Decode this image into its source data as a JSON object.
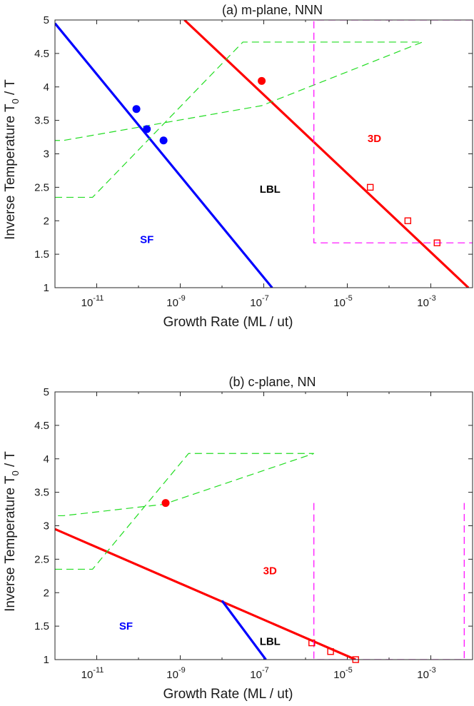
{
  "chart_data": [
    {
      "type": "line",
      "title": "(a) m-plane, NNN",
      "xlabel": "Growth Rate (ML / ut)",
      "ylabel_main": "Inverse Temperature T",
      "ylabel_sub": "0",
      "ylabel_tail": " / T",
      "xscale": "log",
      "xlim_log10": [
        -12,
        -2
      ],
      "ylim": [
        1,
        5
      ],
      "yticks": [
        1,
        1.5,
        2,
        2.5,
        3,
        3.5,
        4,
        4.5,
        5
      ],
      "ytick_labels": [
        "1",
        "1.5",
        "2",
        "2.5",
        "3",
        "3.5",
        "4",
        "4.5",
        "5"
      ],
      "xticks_log10": [
        -11,
        -9,
        -7,
        -5,
        -3
      ],
      "xtick_base": "10",
      "xtick_exps": [
        "-11",
        "-9",
        "-7",
        "-5",
        "-3"
      ],
      "series": [
        {
          "name": "SF-LBL boundary",
          "color": "#0000ff",
          "kind": "line",
          "log10x": [
            -12,
            -6.8
          ],
          "y": [
            4.95,
            1.0
          ]
        },
        {
          "name": "LBL-3D boundary",
          "color": "#ff0000",
          "kind": "line",
          "log10x": [
            -8.9,
            -2.1
          ],
          "y": [
            5.0,
            1.0
          ]
        },
        {
          "name": "SF-LBL markers",
          "color": "#0000ff",
          "kind": "filled-circle",
          "log10x": [
            -10.05,
            -9.8,
            -9.4
          ],
          "y": [
            3.67,
            3.37,
            3.2
          ]
        },
        {
          "name": "LBL-3D marker",
          "color": "#ff0000",
          "kind": "filled-circle",
          "log10x": [
            -7.05
          ],
          "y": [
            4.09
          ]
        },
        {
          "name": "3D markers",
          "color": "#ff0000",
          "kind": "open-square",
          "log10x": [
            -4.45,
            -3.55,
            -2.85
          ],
          "y": [
            2.5,
            2.0,
            1.67
          ]
        },
        {
          "name": "experimental window (green)",
          "color": "#22dd22",
          "kind": "dashed",
          "log10x": [
            -12,
            -11.1,
            -7.5,
            -3.2,
            -7.05,
            -11.8,
            -12
          ],
          "y": [
            2.35,
            2.35,
            4.67,
            4.67,
            3.72,
            3.2,
            3.2
          ]
        },
        {
          "name": "simulation window (magenta)",
          "color": "#ff00ff",
          "kind": "dashed",
          "log10x": [
            -2,
            -5.8,
            -5.8,
            -2
          ],
          "y": [
            5.0,
            5.0,
            1.67,
            1.67
          ]
        }
      ],
      "annotations": [
        {
          "text": "SF",
          "color": "#0000ff",
          "log10x": -9.8,
          "y": 1.72
        },
        {
          "text": "LBL",
          "color": "#000000",
          "log10x": -6.85,
          "y": 2.47
        },
        {
          "text": "3D",
          "color": "#ff0000",
          "log10x": -4.35,
          "y": 3.23
        }
      ]
    },
    {
      "type": "line",
      "title": "(b) c-plane, NN",
      "xlabel": "Growth Rate (ML / ut)",
      "ylabel_main": "Inverse Temperature T",
      "ylabel_sub": "0",
      "ylabel_tail": " / T",
      "xscale": "log",
      "xlim_log10": [
        -12,
        -2
      ],
      "ylim": [
        1,
        5
      ],
      "yticks": [
        1,
        1.5,
        2,
        2.5,
        3,
        3.5,
        4,
        4.5,
        5
      ],
      "ytick_labels": [
        "1",
        "1.5",
        "2",
        "2.5",
        "3",
        "3.5",
        "4",
        "4.5",
        "5"
      ],
      "xticks_log10": [
        -11,
        -9,
        -7,
        -5,
        -3
      ],
      "xtick_base": "10",
      "xtick_exps": [
        "-11",
        "-9",
        "-7",
        "-5",
        "-3"
      ],
      "series": [
        {
          "name": "SF-3D/LBL boundary",
          "color": "#ff0000",
          "kind": "line",
          "log10x": [
            -12,
            -4.8
          ],
          "y": [
            2.95,
            1.0
          ]
        },
        {
          "name": "SF-LBL boundary",
          "color": "#0000ff",
          "kind": "line",
          "log10x": [
            -8.0,
            -6.95
          ],
          "y": [
            1.88,
            1.0
          ]
        },
        {
          "name": "marker",
          "color": "#ff0000",
          "kind": "filled-circle",
          "log10x": [
            -9.35
          ],
          "y": [
            3.34
          ]
        },
        {
          "name": "3D markers",
          "color": "#ff0000",
          "kind": "open-square",
          "log10x": [
            -5.85,
            -5.4,
            -4.8
          ],
          "y": [
            1.25,
            1.12,
            1.0
          ]
        },
        {
          "name": "experimental window (green)",
          "color": "#22dd22",
          "kind": "dashed",
          "log10x": [
            -12,
            -11.1,
            -8.8,
            -5.8,
            -9.4,
            -11.8,
            -12
          ],
          "y": [
            2.35,
            2.35,
            4.08,
            4.08,
            3.32,
            3.15,
            3.15
          ]
        },
        {
          "name": "simulation window (magenta)",
          "color": "#ff00ff",
          "kind": "dashed",
          "log10x": [
            -5.8,
            -5.8,
            -2.2,
            -2.2
          ],
          "y": [
            3.34,
            1.0,
            1.0,
            3.34
          ]
        }
      ],
      "annotations": [
        {
          "text": "SF",
          "color": "#0000ff",
          "log10x": -10.3,
          "y": 1.5
        },
        {
          "text": "LBL",
          "color": "#000000",
          "log10x": -6.85,
          "y": 1.27
        },
        {
          "text": "3D",
          "color": "#ff0000",
          "log10x": -6.85,
          "y": 2.33
        }
      ]
    }
  ]
}
